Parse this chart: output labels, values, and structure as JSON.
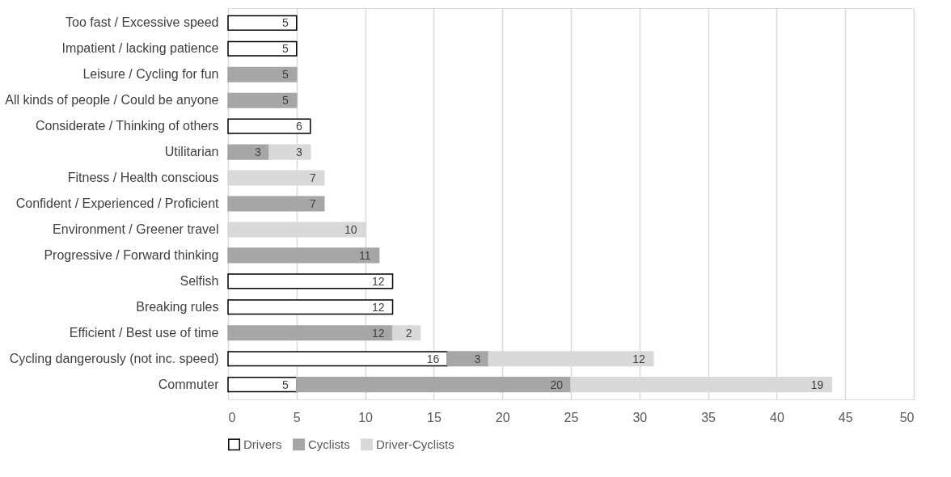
{
  "chart_data": {
    "type": "bar",
    "orientation": "horizontal",
    "stacked": true,
    "data_labels": true,
    "grid": "x",
    "legend": "bottom",
    "categories": [
      "Too fast / Excessive speed",
      "Impatient / lacking patience",
      "Leisure / Cycling for fun",
      "All kinds of people / Could be anyone",
      "Considerate / Thinking of others",
      "Utilitarian",
      "Fitness / Health conscious",
      "Confident / Experienced / Proficient",
      "Environment / Greener travel",
      "Progressive / Forward thinking",
      "Selfish",
      "Breaking rules",
      "Efficient / Best use of time",
      "Cycling dangerously (not inc. speed)",
      "Commuter"
    ],
    "series": [
      {
        "name": "Drivers",
        "color": "#ffffff",
        "values": [
          5,
          5,
          null,
          null,
          6,
          null,
          null,
          null,
          null,
          null,
          12,
          12,
          null,
          16,
          5
        ]
      },
      {
        "name": "Cyclists",
        "color": "#a6a6a6",
        "values": [
          null,
          null,
          5,
          5,
          null,
          3,
          null,
          7,
          null,
          11,
          null,
          null,
          12,
          3,
          20
        ]
      },
      {
        "name": "Driver-Cyclists",
        "color": "#d9d9d9",
        "values": [
          null,
          null,
          null,
          null,
          null,
          3,
          7,
          null,
          10,
          null,
          null,
          null,
          2,
          12,
          19
        ]
      }
    ],
    "xlim": [
      0,
      50
    ],
    "xticks": [
      0,
      5,
      10,
      15,
      20,
      25,
      30,
      35,
      40,
      45,
      50
    ]
  }
}
